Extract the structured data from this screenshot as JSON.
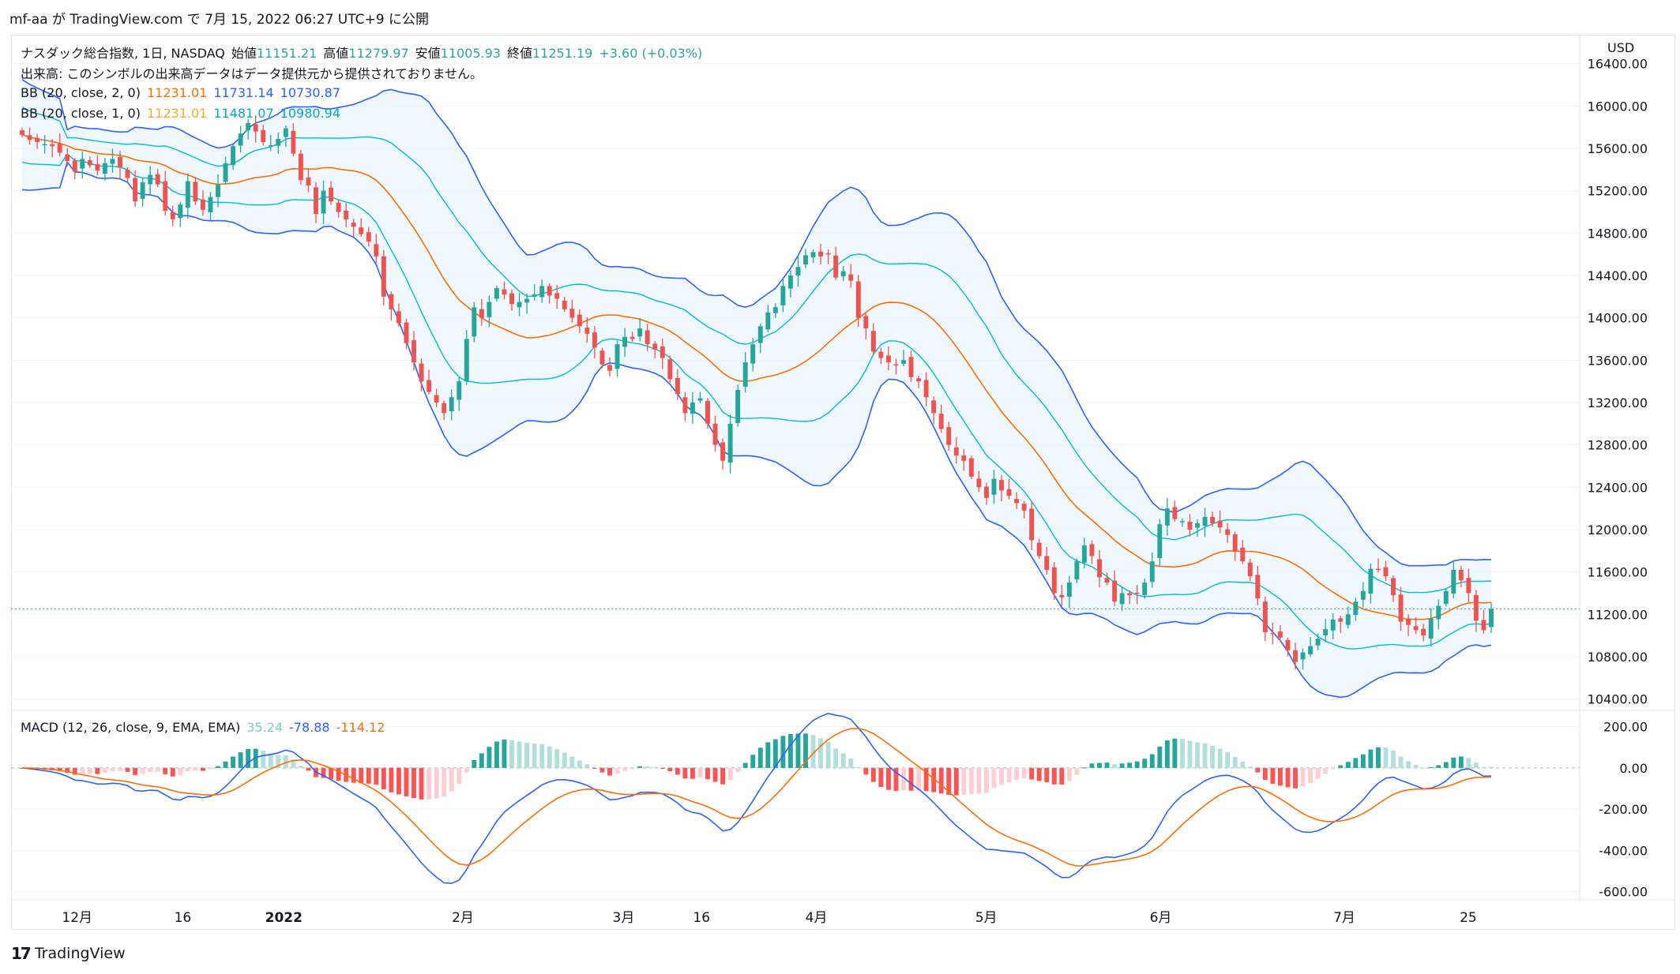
{
  "header": {
    "publish_line": "mf-aa が TradingView.com で 7月 15, 2022 06:27 UTC+9 に公開"
  },
  "footer": {
    "brand": "TradingView",
    "logo": "17"
  },
  "legend": {
    "title": "ナスダック総合指数, 1日, NASDAQ",
    "ohlc": {
      "open_label": "始値",
      "open": "11151.21",
      "high_label": "高値",
      "high": "11279.97",
      "low_label": "安値",
      "low": "11005.93",
      "close_label": "終値",
      "close": "11251.19",
      "change": "+3.60 (+0.03%)"
    },
    "volume_note": "出来高: このシンボルの出来高データはデータ提供元から提供されておりません。",
    "bb2": {
      "label": "BB (20, close, 2, 0)",
      "basis": "11231.01",
      "upper": "11731.14",
      "lower": "10730.87"
    },
    "bb1": {
      "label": "BB (20, close, 1, 0)",
      "basis": "11231.01",
      "upper": "11481.07",
      "lower": "10980.94"
    },
    "macd": {
      "label": "MACD (12, 26, close, 9, EMA, EMA)",
      "hist": "35.24",
      "macd": "-78.88",
      "signal": "-114.12"
    }
  },
  "colors": {
    "up": "#26a69a",
    "down": "#ef5350",
    "bb2": "#2962ff",
    "bb1": "#00bcd4",
    "basis": "#ff6d00",
    "hist_up_strong": "#26a69a",
    "hist_up_weak": "#b2dfdb",
    "hist_dn_strong": "#ff5252",
    "hist_dn_weak": "#ffcdd2",
    "text": "#131722"
  },
  "chart_data": [
    {
      "type": "candlestick",
      "title": "ナスダック総合指数, 1日, NASDAQ",
      "y_axis_unit": "USD",
      "price_scale_ticks": [
        "16400.00",
        "16000.00",
        "15600.00",
        "15200.00",
        "14800.00",
        "14400.00",
        "14000.00",
        "13600.00",
        "13200.00",
        "12800.00",
        "12400.00",
        "12000.00",
        "11600.00",
        "11200.00",
        "10800.00",
        "10400.00"
      ],
      "x_tick_labels": [
        "12月",
        "16",
        "2022",
        "2月",
        "3月",
        "16",
        "4月",
        "5月",
        "6月",
        "7月",
        "25"
      ],
      "ylim": [
        10330,
        16420
      ],
      "last_close": 11251.19,
      "closes": [
        15730,
        15680,
        15660,
        15640,
        15620,
        15560,
        15480,
        15380,
        15500,
        15440,
        15390,
        15460,
        15500,
        15420,
        15320,
        15100,
        15280,
        15350,
        15260,
        15010,
        14930,
        15070,
        15290,
        15100,
        15020,
        15140,
        15260,
        15460,
        15620,
        15740,
        15840,
        15760,
        15660,
        15630,
        15690,
        15790,
        15550,
        15300,
        15250,
        14980,
        15200,
        15100,
        15000,
        14930,
        14860,
        14790,
        14720,
        14580,
        14200,
        14080,
        13950,
        13760,
        13580,
        13400,
        13300,
        13200,
        13100,
        13250,
        13400,
        13800,
        14100,
        14000,
        14150,
        14280,
        14220,
        14130,
        14150,
        14180,
        14220,
        14300,
        14210,
        14180,
        14080,
        14000,
        13920,
        13850,
        13720,
        13560,
        13500,
        13750,
        13820,
        13800,
        13900,
        13750,
        13700,
        13620,
        13420,
        13280,
        13100,
        13200,
        13240,
        13000,
        12800,
        12650,
        13000,
        13320,
        13580,
        13750,
        13920,
        14050,
        14100,
        14300,
        14400,
        14480,
        14590,
        14620,
        14580,
        14600,
        14380,
        14440,
        14350,
        14000,
        13900,
        13680,
        13620,
        13580,
        13560,
        13600,
        13440,
        13400,
        13250,
        13100,
        12950,
        12800,
        12700,
        12650,
        12500,
        12400,
        12300,
        12480,
        12370,
        12320,
        12250,
        12180,
        11900,
        11750,
        11620,
        11400,
        11360,
        11500,
        11700,
        11850,
        11750,
        11550,
        11500,
        11320,
        11400,
        11380,
        11400,
        11500,
        11700,
        12050,
        12200,
        12100,
        12080,
        12000,
        12060,
        12120,
        12060,
        12020,
        11950,
        11800,
        11700,
        11560,
        11350,
        11030,
        11020,
        10980,
        10860,
        10750,
        10840,
        10900,
        10970,
        11060,
        11150,
        11130,
        11200,
        11320,
        11420,
        11630,
        11620,
        11560,
        11380,
        11130,
        11100,
        11050,
        11000,
        11160,
        11280,
        11420,
        11620,
        11520,
        11400,
        11140,
        11050,
        11251.19
      ],
      "bb_2sd": {
        "upper_last": 11731.14,
        "basis_last": 11231.01,
        "lower_last": 10730.87
      },
      "bb_1sd": {
        "upper_last": 11481.07,
        "lower_last": 10980.94
      }
    },
    {
      "type": "macd",
      "title": "MACD (12, 26, close, 9, EMA, EMA)",
      "y_ticks": [
        "200.00",
        "0.00",
        "-200.00",
        "-400.00",
        "-600.00"
      ],
      "ylim": [
        -640,
        260
      ],
      "last": {
        "histogram": 35.24,
        "macd": -78.88,
        "signal": -114.12
      }
    }
  ]
}
